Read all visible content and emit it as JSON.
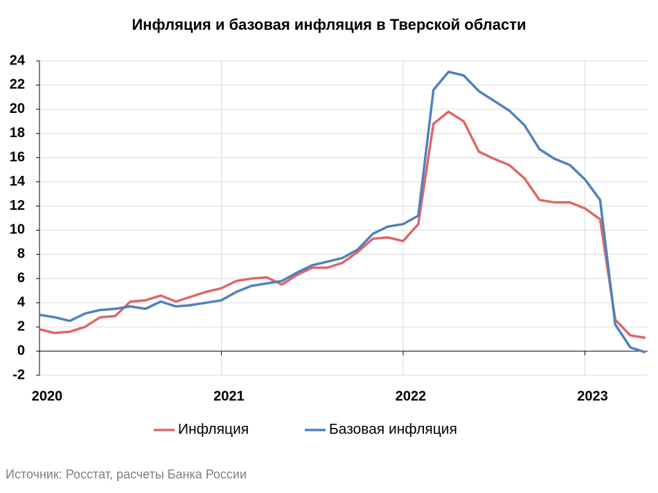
{
  "chart_data": {
    "type": "line",
    "title": "Инфляция и базовая инфляция в Тверской области",
    "categories": [
      "2020",
      null,
      null,
      null,
      null,
      null,
      null,
      null,
      null,
      null,
      null,
      null,
      "2021",
      null,
      null,
      null,
      null,
      null,
      null,
      null,
      null,
      null,
      null,
      null,
      "2022",
      null,
      null,
      null,
      null,
      null,
      null,
      null,
      null,
      null,
      null,
      null,
      "2023",
      null,
      null,
      null,
      null
    ],
    "series": [
      {
        "name": "Инфляция",
        "color": "#e06666",
        "values": [
          1.8,
          1.5,
          1.6,
          2.0,
          2.8,
          2.9,
          4.1,
          4.2,
          4.6,
          4.1,
          4.5,
          4.9,
          5.2,
          5.8,
          6.0,
          6.1,
          5.5,
          6.3,
          6.9,
          6.9,
          7.3,
          8.2,
          9.3,
          9.4,
          9.1,
          10.5,
          18.8,
          19.8,
          19.0,
          16.5,
          15.9,
          15.4,
          14.3,
          12.5,
          12.3,
          12.3,
          11.8,
          10.9,
          2.6,
          1.3,
          1.1
        ]
      },
      {
        "name": "Базовая инфляция",
        "color": "#4f81bd",
        "values": [
          3.0,
          2.8,
          2.5,
          3.1,
          3.4,
          3.5,
          3.7,
          3.5,
          4.1,
          3.7,
          3.8,
          4.0,
          4.2,
          4.9,
          5.4,
          5.6,
          5.8,
          6.5,
          7.1,
          7.4,
          7.7,
          8.4,
          9.7,
          10.3,
          10.5,
          11.2,
          21.6,
          23.1,
          22.8,
          21.5,
          20.7,
          19.9,
          18.7,
          16.7,
          15.9,
          15.4,
          14.2,
          12.5,
          2.2,
          0.3,
          -0.1
        ]
      }
    ],
    "ylim": [
      -2,
      24
    ],
    "yticks": [
      -2,
      0,
      2,
      4,
      6,
      8,
      10,
      12,
      14,
      16,
      18,
      20,
      22,
      24
    ],
    "grid": true,
    "legend": "bottom",
    "source": "Источник: Росстат, расчеты Банка России"
  }
}
